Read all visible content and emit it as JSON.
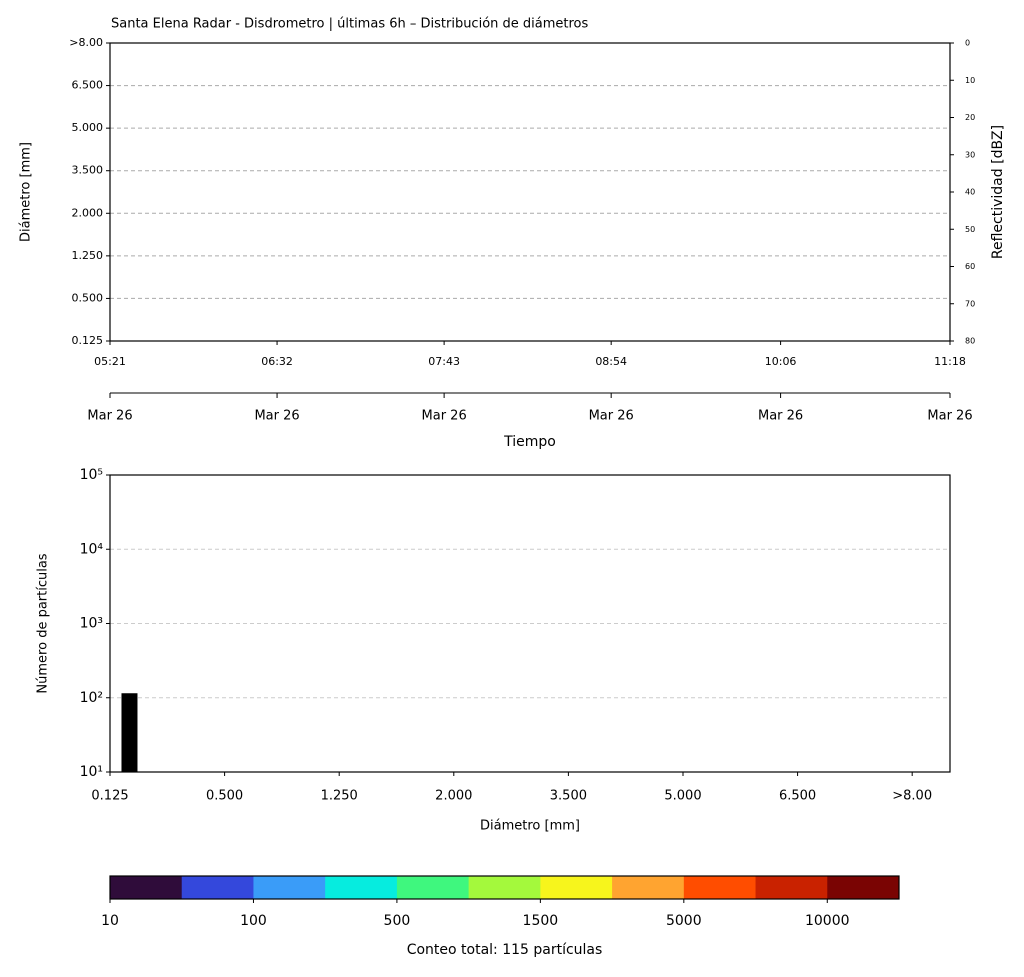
{
  "chart_data": [
    {
      "type": "heatmap",
      "title": "Santa Elena Radar - Disdrometro | últimas 6h – Distribución de diámetros",
      "xlabel": "Tiempo",
      "ylabel": "Diámetro [mm]",
      "y2label": "Reflectividad [dBZ]",
      "xlim": [
        "05:21",
        "11:18"
      ],
      "xticks": [
        "05:21",
        "06:32",
        "07:43",
        "08:54",
        "10:06",
        "11:18"
      ],
      "xticks_dates": [
        "Mar 26",
        "Mar 26",
        "Mar 26",
        "Mar 26",
        "Mar 26",
        "Mar 26"
      ],
      "ylim": [
        0,
        7
      ],
      "yticks": [
        {
          "value": 0,
          "label": "0.125"
        },
        {
          "value": 1,
          "label": "0.500"
        },
        {
          "value": 2,
          "label": "1.250"
        },
        {
          "value": 3,
          "label": "2.000"
        },
        {
          "value": 4,
          "label": "3.500"
        },
        {
          "value": 5,
          "label": "5.000"
        },
        {
          "value": 6,
          "label": "6.500"
        },
        {
          "value": 7,
          "label": ">8.00"
        }
      ],
      "y2lim": [
        80,
        0
      ],
      "y2ticks": [
        0,
        10,
        20,
        30,
        40,
        50,
        60,
        70,
        80
      ],
      "grid": true
    },
    {
      "type": "bar",
      "xlabel": "Diámetro [mm]",
      "ylabel": "Número de partículas",
      "x": [
        0.17
      ],
      "values": [
        115
      ],
      "color": "#000000",
      "xlim": [
        0,
        7.33
      ],
      "xticks": [
        {
          "value": 0,
          "label": "0.125"
        },
        {
          "value": 1,
          "label": "0.500"
        },
        {
          "value": 2,
          "label": "1.250"
        },
        {
          "value": 3,
          "label": "2.000"
        },
        {
          "value": 4,
          "label": "3.500"
        },
        {
          "value": 5,
          "label": "5.000"
        },
        {
          "value": 6,
          "label": "6.500"
        },
        {
          "value": 7,
          "label": ">8.00"
        }
      ],
      "ylim": [
        10,
        100000
      ],
      "log_y": true,
      "yticks": [
        {
          "value": 10,
          "label": "10¹"
        },
        {
          "value": 100,
          "label": "10²"
        },
        {
          "value": 1000,
          "label": "10³"
        },
        {
          "value": 10000,
          "label": "10⁴"
        },
        {
          "value": 100000,
          "label": "10⁵"
        }
      ],
      "grid": true
    },
    {
      "type": "colorbar",
      "xlabel": "Conteo total: 115 partículas",
      "colors": [
        "#2f0c3a",
        "#3448dc",
        "#3a9cf8",
        "#06ecdf",
        "#3ff77e",
        "#a4f93c",
        "#f7f51c",
        "#ffa430",
        "#ff4d00",
        "#c92200",
        "#7a0403"
      ],
      "xlim": [
        0,
        11
      ],
      "xticks": [
        {
          "value": 0,
          "label": "10"
        },
        {
          "value": 2,
          "label": "100"
        },
        {
          "value": 4,
          "label": "500"
        },
        {
          "value": 6,
          "label": "1500"
        },
        {
          "value": 8,
          "label": "5000"
        },
        {
          "value": 10,
          "label": "10000"
        }
      ]
    }
  ]
}
